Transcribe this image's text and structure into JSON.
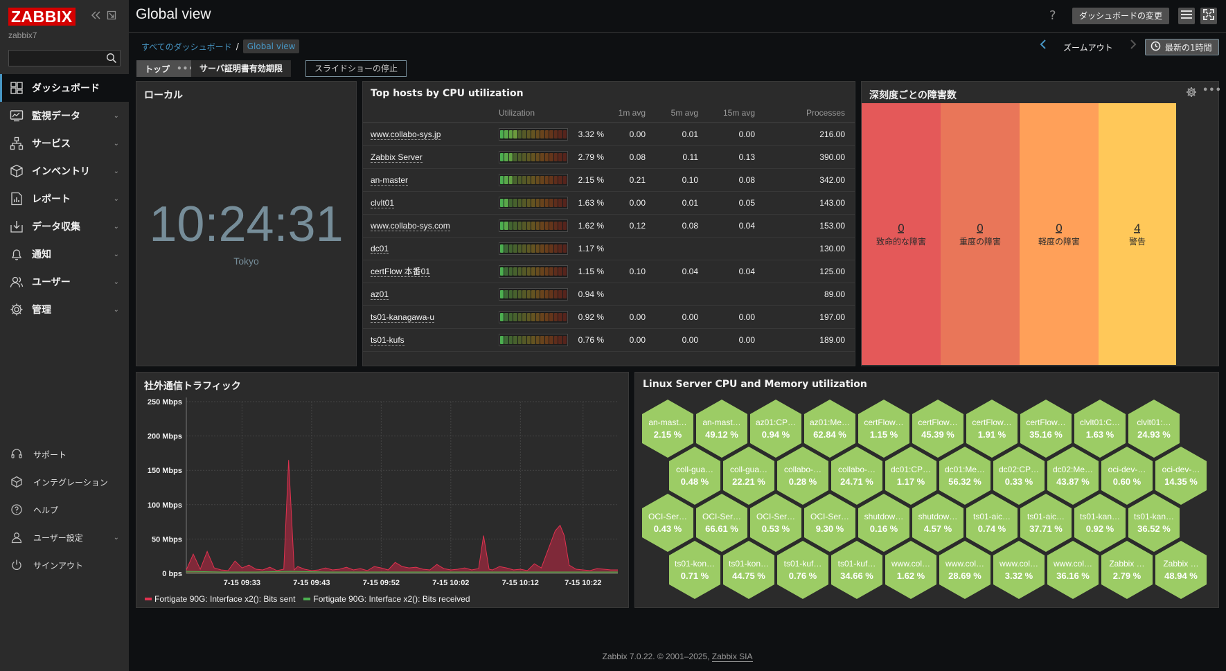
{
  "sidebar": {
    "logo": "ZABBIX",
    "server_name": "zabbix7",
    "search_placeholder": "",
    "menu": [
      {
        "label": "ダッシュボード",
        "icon": "dashboard-icon",
        "active": true,
        "has_sub": false
      },
      {
        "label": "監視データ",
        "icon": "monitoring-icon",
        "has_sub": true
      },
      {
        "label": "サービス",
        "icon": "services-icon",
        "has_sub": true
      },
      {
        "label": "インベントリ",
        "icon": "inventory-icon",
        "has_sub": true
      },
      {
        "label": "レポート",
        "icon": "reports-icon",
        "has_sub": true
      },
      {
        "label": "データ収集",
        "icon": "data-collection-icon",
        "has_sub": true
      },
      {
        "label": "通知",
        "icon": "alerts-icon",
        "has_sub": true
      },
      {
        "label": "ユーザー",
        "icon": "users-icon",
        "has_sub": true
      },
      {
        "label": "管理",
        "icon": "administration-icon",
        "has_sub": true
      }
    ],
    "bottom": [
      {
        "label": "サポート",
        "icon": "support-icon"
      },
      {
        "label": "インテグレーション",
        "icon": "integrations-icon"
      },
      {
        "label": "ヘルプ",
        "icon": "help-icon"
      },
      {
        "label": "ユーザー設定",
        "icon": "user-settings-icon",
        "has_sub": true
      },
      {
        "label": "サインアウト",
        "icon": "sign-out-icon"
      }
    ]
  },
  "header": {
    "title": "Global view",
    "help": "?",
    "edit_button": "ダッシュボードの変更"
  },
  "breadcrumb": {
    "all": "すべてのダッシュボード",
    "sep": "/",
    "current": "Global view"
  },
  "timeline": {
    "zoom_out": "ズームアウト",
    "range": "最新の1時間"
  },
  "pages": {
    "top": "トップ",
    "top_dots": "•••",
    "cert": "サーバ証明書有効期限",
    "slideshow": "スライドショーの停止"
  },
  "clock": {
    "title": "ローカル",
    "time": "10:24:31",
    "timezone": "Tokyo"
  },
  "tophosts": {
    "title": "Top hosts by CPU utilization",
    "columns": [
      "",
      "Utilization",
      "1m avg",
      "5m avg",
      "15m avg",
      "Processes"
    ],
    "rows": [
      {
        "host": "www.collabo-sys.jp",
        "util": "3.32 %",
        "util_value": 3.32,
        "m1": "0.00",
        "m5": "0.01",
        "m15": "0.00",
        "proc": "216.00"
      },
      {
        "host": "Zabbix Server",
        "util": "2.79 %",
        "util_value": 2.79,
        "m1": "0.08",
        "m5": "0.11",
        "m15": "0.13",
        "proc": "390.00"
      },
      {
        "host": "an-master",
        "util": "2.15 %",
        "util_value": 2.15,
        "m1": "0.21",
        "m5": "0.10",
        "m15": "0.08",
        "proc": "342.00"
      },
      {
        "host": "clvlt01",
        "util": "1.63 %",
        "util_value": 1.63,
        "m1": "0.00",
        "m5": "0.01",
        "m15": "0.05",
        "proc": "143.00"
      },
      {
        "host": "www.collabo-sys.com",
        "util": "1.62 %",
        "util_value": 1.62,
        "m1": "0.12",
        "m5": "0.08",
        "m15": "0.04",
        "proc": "153.00"
      },
      {
        "host": "dc01",
        "util": "1.17 %",
        "util_value": 1.17,
        "m1": "",
        "m5": "",
        "m15": "",
        "proc": "130.00"
      },
      {
        "host": "certFlow 本番01",
        "util": "1.15 %",
        "util_value": 1.15,
        "m1": "0.10",
        "m5": "0.04",
        "m15": "0.04",
        "proc": "125.00"
      },
      {
        "host": "az01",
        "util": "0.94 %",
        "util_value": 0.94,
        "m1": "",
        "m5": "",
        "m15": "",
        "proc": "89.00"
      },
      {
        "host": "ts01-kanagawa-u",
        "util": "0.92 %",
        "util_value": 0.92,
        "m1": "0.00",
        "m5": "0.00",
        "m15": "0.00",
        "proc": "197.00"
      },
      {
        "host": "ts01-kufs",
        "util": "0.76 %",
        "util_value": 0.76,
        "m1": "0.00",
        "m5": "0.00",
        "m15": "0.00",
        "proc": "189.00"
      }
    ]
  },
  "severity": {
    "title": "深刻度ごとの障害数",
    "items": [
      {
        "count": "0",
        "name": "致命的な障害",
        "color": "#e45959"
      },
      {
        "count": "0",
        "name": "重度の障害",
        "color": "#e97659"
      },
      {
        "count": "0",
        "name": "軽度の障害",
        "color": "#ffa059"
      },
      {
        "count": "4",
        "name": "警告",
        "color": "#ffc859"
      }
    ]
  },
  "traffic": {
    "title": "社外通信トラフィック",
    "legend": [
      {
        "name": "Fortigate 90G: Interface x2(): Bits sent",
        "color": "#e0324f"
      },
      {
        "name": "Fortigate 90G: Interface x2(): Bits received",
        "color": "#4caf50"
      }
    ]
  },
  "chart_data": {
    "type": "area",
    "ylabel": "",
    "ylim": [
      0,
      250
    ],
    "yticks": [
      "250 Mbps",
      "200 Mbps",
      "150 Mbps",
      "100 Mbps",
      "50 Mbps",
      "0 bps"
    ],
    "ytick_values": [
      250,
      200,
      150,
      100,
      50,
      0
    ],
    "xticks": [
      "7-15 09:33",
      "7-15 09:43",
      "7-15 09:52",
      "7-15 10:02",
      "7-15 10:12",
      "7-15 10:22"
    ],
    "xlim_minutes": [
      0,
      62
    ],
    "xtick_minutes": [
      8,
      18,
      28,
      38,
      48,
      57
    ],
    "series": [
      {
        "name": "Fortigate 90G: Interface x2(): Bits sent",
        "x": [
          0,
          1,
          2,
          3,
          4,
          5,
          6,
          7,
          8,
          9,
          10,
          11,
          12,
          13,
          14,
          14.7,
          15.5,
          16,
          17,
          18,
          19,
          20,
          21,
          22,
          23,
          24,
          25,
          26,
          27,
          28,
          29,
          30,
          31,
          32,
          33,
          34,
          35,
          36,
          37,
          38,
          39,
          40,
          41,
          42,
          42.7,
          43.5,
          44,
          45,
          46,
          47,
          48,
          49,
          50,
          51,
          52,
          53,
          53.7,
          54.3,
          55,
          56,
          57,
          58,
          59,
          60,
          61,
          62
        ],
        "values": [
          5,
          28,
          6,
          32,
          8,
          5,
          4,
          18,
          8,
          12,
          6,
          5,
          9,
          4,
          6,
          165,
          5,
          10,
          6,
          4,
          5,
          8,
          5,
          6,
          9,
          5,
          7,
          4,
          10,
          8,
          5,
          16,
          10,
          8,
          9,
          6,
          5,
          13,
          7,
          5,
          6,
          8,
          5,
          7,
          55,
          6,
          5,
          10,
          8,
          5,
          6,
          4,
          14,
          8,
          35,
          62,
          70,
          55,
          12,
          6,
          5,
          4,
          7,
          6,
          5,
          5
        ]
      },
      {
        "name": "Fortigate 90G: Interface x2(): Bits received",
        "x": [
          0,
          5,
          10,
          15,
          20,
          25,
          30,
          35,
          40,
          45,
          50,
          55,
          60,
          62
        ],
        "values": [
          3,
          2,
          2,
          3,
          2,
          2,
          2,
          2,
          2,
          2,
          2,
          2,
          2,
          2
        ]
      }
    ]
  },
  "honeycomb": {
    "title": "Linux Server CPU and Memory utilization",
    "cells": [
      {
        "label": "an-mast…",
        "value": "2.15 %"
      },
      {
        "label": "an-mast…",
        "value": "49.12 %"
      },
      {
        "label": "az01:CP…",
        "value": "0.94 %"
      },
      {
        "label": "az01:Me…",
        "value": "62.84 %"
      },
      {
        "label": "certFlow…",
        "value": "1.15 %"
      },
      {
        "label": "certFlow…",
        "value": "45.39 %"
      },
      {
        "label": "certFlow…",
        "value": "1.91 %"
      },
      {
        "label": "certFlow…",
        "value": "35.16 %"
      },
      {
        "label": "clvlt01:C…",
        "value": "1.63 %"
      },
      {
        "label": "clvlt01:…",
        "value": "24.93 %"
      },
      {
        "label": "coll-gua…",
        "value": "0.48 %"
      },
      {
        "label": "coll-gua…",
        "value": "22.21 %"
      },
      {
        "label": "collabo-…",
        "value": "0.28 %"
      },
      {
        "label": "collabo-…",
        "value": "24.71 %"
      },
      {
        "label": "dc01:CP…",
        "value": "1.17 %"
      },
      {
        "label": "dc01:Me…",
        "value": "56.32 %"
      },
      {
        "label": "dc02:CP…",
        "value": "0.33 %"
      },
      {
        "label": "dc02:Me…",
        "value": "43.87 %"
      },
      {
        "label": "oci-dev-…",
        "value": "0.60 %"
      },
      {
        "label": "oci-dev-…",
        "value": "14.35 %"
      },
      {
        "label": "OCI-Ser…",
        "value": "0.43 %"
      },
      {
        "label": "OCI-Ser…",
        "value": "66.61 %"
      },
      {
        "label": "OCI-Ser…",
        "value": "0.53 %"
      },
      {
        "label": "OCI-Ser…",
        "value": "9.30 %"
      },
      {
        "label": "shutdow…",
        "value": "0.16 %"
      },
      {
        "label": "shutdow…",
        "value": "4.57 %"
      },
      {
        "label": "ts01-aic…",
        "value": "0.74 %"
      },
      {
        "label": "ts01-aic…",
        "value": "37.71 %"
      },
      {
        "label": "ts01-kan…",
        "value": "0.92 %"
      },
      {
        "label": "ts01-kan…",
        "value": "36.52 %"
      },
      {
        "label": "ts01-kon…",
        "value": "0.71 %"
      },
      {
        "label": "ts01-kon…",
        "value": "44.75 %"
      },
      {
        "label": "ts01-kuf…",
        "value": "0.76 %"
      },
      {
        "label": "ts01-kuf…",
        "value": "34.66 %"
      },
      {
        "label": "www.col…",
        "value": "1.62 %"
      },
      {
        "label": "www.col…",
        "value": "28.69 %"
      },
      {
        "label": "www.col…",
        "value": "3.32 %"
      },
      {
        "label": "www.col…",
        "value": "36.16 %"
      },
      {
        "label": "Zabbix …",
        "value": "2.79 %"
      },
      {
        "label": "Zabbix …",
        "value": "48.94 %"
      }
    ]
  },
  "footer": {
    "text": "Zabbix 7.0.22. © 2001–2025, ",
    "link": "Zabbix SIA"
  },
  "colors": {
    "accent": "#4796c4",
    "sidebar_bg": "#2b2b2b",
    "page_bg": "#0e1012",
    "hex_fill": "#9ccc65"
  }
}
